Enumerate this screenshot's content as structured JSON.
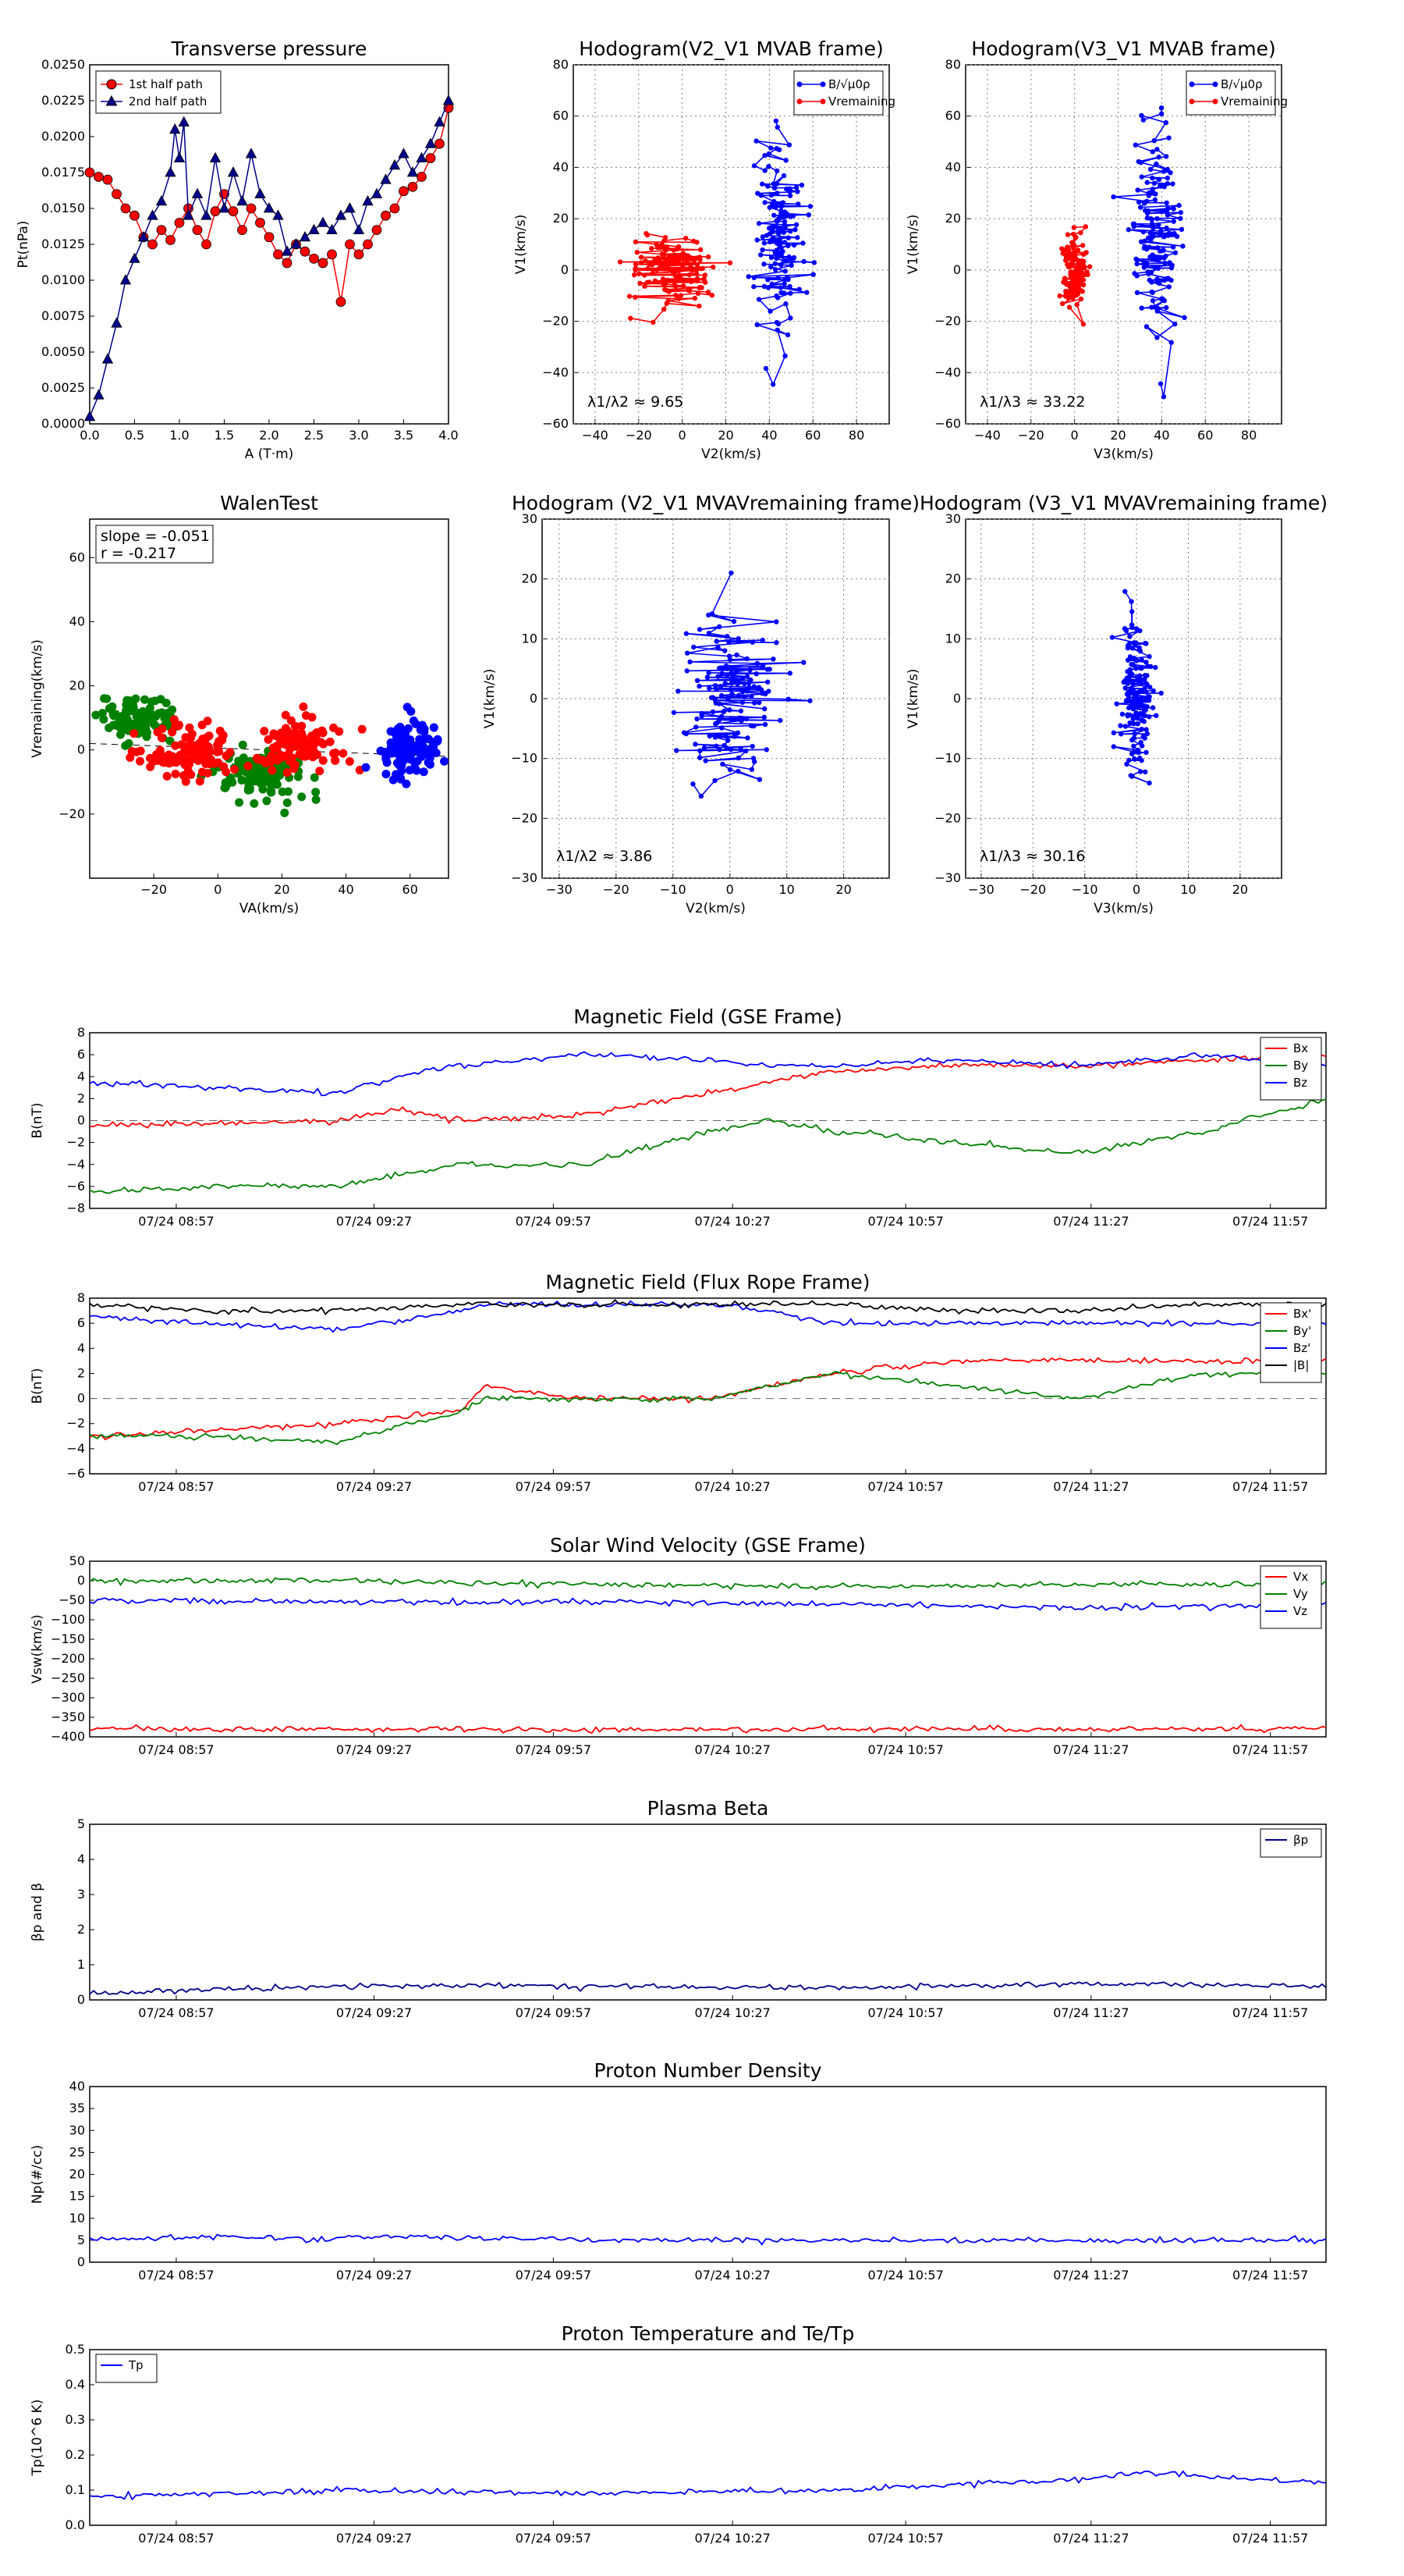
{
  "colors": {
    "red": "#ff0000",
    "green": "#008000",
    "blue": "#0000ff",
    "navy": "#00008b",
    "black": "#000000",
    "grid": "#7f7f7f"
  },
  "chart_data": [
    {
      "id": "tp",
      "type": "scatter",
      "title": "Transverse pressure",
      "xlabel": "A (T·m)",
      "ylabel": "Pt(nPa)",
      "xlim": [
        0,
        4.0
      ],
      "ylim": [
        0,
        0.025
      ],
      "xticks": [
        "0.0",
        "0.5",
        "1.0",
        "1.5",
        "2.0",
        "2.5",
        "3.0",
        "3.5",
        "4.0"
      ],
      "yticks": [
        "0.0000",
        "0.0025",
        "0.0050",
        "0.0075",
        "0.0100",
        "0.0125",
        "0.0150",
        "0.0175",
        "0.0200",
        "0.0225",
        "0.0250"
      ],
      "legend_position": "upper left",
      "series": [
        {
          "name": "1st half path",
          "marker": "circle",
          "color": "red",
          "x": [
            0.0,
            0.1,
            0.2,
            0.3,
            0.4,
            0.5,
            0.6,
            0.7,
            0.8,
            0.9,
            1.0,
            1.1,
            1.2,
            1.3,
            1.4,
            1.5,
            1.6,
            1.7,
            1.8,
            1.9,
            2.0,
            2.1,
            2.2,
            2.3,
            2.4,
            2.5,
            2.6,
            2.7,
            2.8,
            2.9,
            3.0,
            3.1,
            3.2,
            3.3,
            3.4,
            3.5,
            3.6,
            3.7,
            3.8,
            3.9,
            4.0
          ],
          "y": [
            0.0175,
            0.0172,
            0.017,
            0.016,
            0.015,
            0.0145,
            0.013,
            0.0125,
            0.0135,
            0.0128,
            0.014,
            0.015,
            0.0135,
            0.0125,
            0.0148,
            0.016,
            0.0148,
            0.0135,
            0.015,
            0.014,
            0.013,
            0.0118,
            0.0112,
            0.0125,
            0.012,
            0.0115,
            0.0112,
            0.0118,
            0.0085,
            0.0125,
            0.0118,
            0.0125,
            0.0135,
            0.0145,
            0.015,
            0.0162,
            0.0165,
            0.0172,
            0.0185,
            0.0195,
            0.022
          ]
        },
        {
          "name": "2nd half path",
          "marker": "triangle",
          "color": "navy",
          "x": [
            0.0,
            0.1,
            0.2,
            0.3,
            0.4,
            0.5,
            0.6,
            0.7,
            0.8,
            0.9,
            0.95,
            1.0,
            1.05,
            1.1,
            1.2,
            1.3,
            1.4,
            1.5,
            1.6,
            1.7,
            1.8,
            1.9,
            2.0,
            2.1,
            2.2,
            2.3,
            2.4,
            2.5,
            2.6,
            2.7,
            2.8,
            2.9,
            3.0,
            3.1,
            3.2,
            3.3,
            3.4,
            3.5,
            3.6,
            3.7,
            3.8,
            3.9,
            4.0
          ],
          "y": [
            0.0005,
            0.002,
            0.0045,
            0.007,
            0.01,
            0.0115,
            0.013,
            0.0145,
            0.0155,
            0.0175,
            0.0205,
            0.0185,
            0.021,
            0.0145,
            0.016,
            0.0145,
            0.0185,
            0.015,
            0.0175,
            0.0155,
            0.0188,
            0.016,
            0.015,
            0.0145,
            0.012,
            0.0125,
            0.013,
            0.0135,
            0.014,
            0.0135,
            0.0145,
            0.015,
            0.0135,
            0.0155,
            0.016,
            0.017,
            0.018,
            0.0188,
            0.0175,
            0.0185,
            0.0195,
            0.021,
            0.0225
          ]
        }
      ]
    },
    {
      "id": "hodo1",
      "type": "line",
      "title": "Hodogram(V2_V1 MVAB frame)",
      "xlabel": "V2(km/s)",
      "ylabel": "V1(km/s)",
      "xlim": [
        -50,
        95
      ],
      "ylim": [
        -60,
        80
      ],
      "xticks": [
        "−40",
        "−20",
        "0",
        "20",
        "40",
        "60",
        "80"
      ],
      "yticks": [
        "−60",
        "−40",
        "−20",
        "0",
        "20",
        "40",
        "60",
        "80"
      ],
      "legend": [
        "B/√μ0ρ",
        "Vremaining"
      ],
      "annotation": "λ1/λ2 ≈ 9.65",
      "blue_cloud": {
        "center": [
          45,
          15
        ],
        "spread": [
          10,
          35
        ]
      },
      "red_cloud": {
        "center": [
          -5,
          0
        ],
        "spread": [
          18,
          12
        ]
      }
    },
    {
      "id": "hodo2",
      "type": "line",
      "title": "Hodogram(V3_V1 MVAB frame)",
      "xlabel": "V3(km/s)",
      "ylabel": "V1(km/s)",
      "xlim": [
        -50,
        95
      ],
      "ylim": [
        -60,
        80
      ],
      "xticks": [
        "−40",
        "−20",
        "0",
        "20",
        "40",
        "60",
        "80"
      ],
      "yticks": [
        "−60",
        "−40",
        "−20",
        "0",
        "20",
        "40",
        "60",
        "80"
      ],
      "legend": [
        "B/√μ0ρ",
        "Vremaining"
      ],
      "annotation": "λ1/λ3 ≈ 33.22",
      "blue_cloud": {
        "center": [
          37,
          15
        ],
        "spread": [
          10,
          35
        ]
      },
      "red_cloud": {
        "center": [
          0,
          0
        ],
        "spread": [
          5,
          12
        ]
      }
    },
    {
      "id": "walen",
      "type": "scatter",
      "title": "WalenTest",
      "xlabel": "VA(km/s)",
      "ylabel": "Vremaining(km/s)",
      "xlim": [
        -40,
        72
      ],
      "ylim": [
        -40,
        72
      ],
      "xticks": [
        "−20",
        "0",
        "20",
        "40",
        "60"
      ],
      "yticks": [
        "−20",
        "0",
        "20",
        "40",
        "60"
      ],
      "annotation": [
        "slope = -0.051",
        "r = -0.217"
      ],
      "clouds": [
        {
          "color": "green",
          "center": [
            -25,
            10
          ],
          "spread": [
            12,
            6
          ]
        },
        {
          "color": "green",
          "center": [
            15,
            -8
          ],
          "spread": [
            15,
            8
          ]
        },
        {
          "color": "red",
          "center": [
            -10,
            0
          ],
          "spread": [
            15,
            8
          ]
        },
        {
          "color": "red",
          "center": [
            25,
            2
          ],
          "spread": [
            15,
            8
          ]
        },
        {
          "color": "blue",
          "center": [
            60,
            0
          ],
          "spread": [
            10,
            8
          ]
        }
      ]
    },
    {
      "id": "hodo3",
      "type": "line",
      "title": "Hodogram (V2_V1 MVAVremaining frame)",
      "xlabel": "V2(km/s)",
      "ylabel": "V1(km/s)",
      "xlim": [
        -33,
        28
      ],
      "ylim": [
        -30,
        30
      ],
      "xticks": [
        "−30",
        "−20",
        "−10",
        "0",
        "10",
        "20"
      ],
      "yticks": [
        "−30",
        "−20",
        "−10",
        "0",
        "10",
        "20",
        "30"
      ],
      "annotation": "λ1/λ2 ≈ 3.86",
      "blue_cloud": {
        "center": [
          0,
          0
        ],
        "spread": [
          8,
          13
        ]
      }
    },
    {
      "id": "hodo4",
      "type": "line",
      "title": "Hodogram (V3_V1 MVAVremaining frame)",
      "xlabel": "V3(km/s)",
      "ylabel": "V1(km/s)",
      "xlim": [
        -33,
        28
      ],
      "ylim": [
        -30,
        30
      ],
      "xticks": [
        "−30",
        "−20",
        "−10",
        "0",
        "10",
        "20"
      ],
      "yticks": [
        "−30",
        "−20",
        "−10",
        "0",
        "10",
        "20",
        "30"
      ],
      "annotation": "λ1/λ3 ≈ 30.16",
      "blue_cloud": {
        "center": [
          0,
          0
        ],
        "spread": [
          3,
          13
        ]
      }
    },
    {
      "id": "bgse",
      "type": "line",
      "title": "Magnetic Field (GSE Frame)",
      "ylabel": "B(nT)",
      "ylim": [
        -8,
        8
      ],
      "yticks": [
        "−8",
        "−6",
        "−4",
        "−2",
        "0",
        "2",
        "4",
        "6",
        "8"
      ],
      "xticks": [
        "07/24 08:57",
        "07/24 09:27",
        "07/24 09:57",
        "07/24 10:27",
        "07/24 10:57",
        "07/24 11:27",
        "07/24 11:57"
      ],
      "zero_line": true,
      "series": [
        {
          "name": "Bx",
          "color": "red",
          "t": [
            0,
            0.1,
            0.2,
            0.25,
            0.3,
            0.4,
            0.5,
            0.55,
            0.6,
            0.7,
            0.8,
            0.9,
            1.0
          ],
          "y": [
            -0.5,
            -0.3,
            0,
            1,
            0,
            0.5,
            2.5,
            3.5,
            4.5,
            5,
            5,
            5.5,
            6
          ]
        },
        {
          "name": "By",
          "color": "green",
          "t": [
            0,
            0.1,
            0.2,
            0.25,
            0.3,
            0.4,
            0.5,
            0.55,
            0.6,
            0.7,
            0.8,
            0.9,
            1.0
          ],
          "y": [
            -6.5,
            -6,
            -6,
            -5,
            -4,
            -4,
            -1,
            0,
            -1,
            -2,
            -3,
            -1,
            2
          ]
        },
        {
          "name": "Bz",
          "color": "blue",
          "t": [
            0,
            0.1,
            0.2,
            0.25,
            0.3,
            0.4,
            0.5,
            0.55,
            0.6,
            0.7,
            0.8,
            0.9,
            1.0
          ],
          "y": [
            3.5,
            3,
            2.5,
            4,
            5,
            6,
            5.5,
            5,
            5,
            5.5,
            5,
            6,
            5
          ]
        }
      ]
    },
    {
      "id": "bfr",
      "type": "line",
      "title": "Magnetic Field (Flux Rope Frame)",
      "ylabel": "B(nT)",
      "ylim": [
        -6,
        8
      ],
      "yticks": [
        "−6",
        "−4",
        "−2",
        "0",
        "2",
        "4",
        "6",
        "8"
      ],
      "xticks": [
        "07/24 08:57",
        "07/24 09:27",
        "07/24 09:57",
        "07/24 10:27",
        "07/24 10:57",
        "07/24 11:27",
        "07/24 11:57"
      ],
      "zero_line": true,
      "series": [
        {
          "name": "Bx'",
          "color": "red",
          "t": [
            0,
            0.1,
            0.2,
            0.3,
            0.32,
            0.4,
            0.5,
            0.55,
            0.6,
            0.7,
            0.8,
            0.9,
            1.0
          ],
          "y": [
            -3,
            -2.5,
            -2,
            -1,
            1,
            0,
            0,
            1,
            2,
            3,
            3,
            3,
            3
          ]
        },
        {
          "name": "By'",
          "color": "green",
          "t": [
            0,
            0.1,
            0.2,
            0.3,
            0.32,
            0.4,
            0.5,
            0.55,
            0.6,
            0.7,
            0.8,
            0.9,
            1.0
          ],
          "y": [
            -3,
            -3,
            -3.5,
            -1,
            0,
            0,
            0,
            1,
            2,
            1,
            0,
            2,
            2
          ]
        },
        {
          "name": "Bz'",
          "color": "blue",
          "t": [
            0,
            0.1,
            0.2,
            0.3,
            0.32,
            0.4,
            0.5,
            0.55,
            0.6,
            0.7,
            0.8,
            0.9,
            1.0
          ],
          "y": [
            6.5,
            6,
            5.5,
            7,
            7.5,
            7.5,
            7.5,
            7,
            6,
            6,
            6,
            6,
            6
          ]
        },
        {
          "name": "|B|",
          "color": "black",
          "t": [
            0,
            0.1,
            0.2,
            0.3,
            0.32,
            0.4,
            0.5,
            0.55,
            0.6,
            0.7,
            0.8,
            0.9,
            1.0
          ],
          "y": [
            7.5,
            7,
            7,
            7.5,
            7.5,
            7.5,
            7.5,
            7.5,
            7.5,
            7,
            7,
            7.5,
            7.5
          ]
        }
      ]
    },
    {
      "id": "vsw",
      "type": "line",
      "title": "Solar Wind Velocity (GSE Frame)",
      "ylabel": "Vsw(km/s)",
      "ylim": [
        -400,
        50
      ],
      "yticks": [
        "−400",
        "−350",
        "−300",
        "−250",
        "−200",
        "−150",
        "−100",
        "−50",
        "0",
        "50"
      ],
      "xticks": [
        "07/24 08:57",
        "07/24 09:27",
        "07/24 09:57",
        "07/24 10:27",
        "07/24 10:57",
        "07/24 11:27",
        "07/24 11:57"
      ],
      "series": [
        {
          "name": "Vx",
          "color": "red",
          "t": [
            0,
            0.2,
            0.4,
            0.6,
            0.8,
            1.0
          ],
          "y": [
            -380,
            -380,
            -382,
            -380,
            -380,
            -378
          ]
        },
        {
          "name": "Vy",
          "color": "green",
          "t": [
            0,
            0.2,
            0.4,
            0.6,
            0.8,
            1.0
          ],
          "y": [
            0,
            0,
            -10,
            -15,
            -10,
            -5
          ]
        },
        {
          "name": "Vz",
          "color": "blue",
          "t": [
            0,
            0.2,
            0.4,
            0.6,
            0.8,
            1.0
          ],
          "y": [
            -50,
            -55,
            -55,
            -60,
            -70,
            -60
          ]
        }
      ]
    },
    {
      "id": "beta",
      "type": "line",
      "title": "Plasma Beta",
      "ylabel": "βp and β",
      "ylim": [
        0,
        5
      ],
      "yticks": [
        "0",
        "1",
        "2",
        "3",
        "4",
        "5"
      ],
      "xticks": [
        "07/24 08:57",
        "07/24 09:27",
        "07/24 09:57",
        "07/24 10:27",
        "07/24 10:57",
        "07/24 11:27",
        "07/24 11:57"
      ],
      "series": [
        {
          "name": "βp",
          "color": "navy",
          "t": [
            0,
            0.2,
            0.4,
            0.6,
            0.8,
            1.0
          ],
          "y": [
            0.2,
            0.4,
            0.4,
            0.35,
            0.45,
            0.4
          ]
        }
      ]
    },
    {
      "id": "np",
      "type": "line",
      "title": "Proton Number Density",
      "ylabel": "Np(#/cc)",
      "ylim": [
        0,
        40
      ],
      "yticks": [
        "0",
        "5",
        "10",
        "15",
        "20",
        "25",
        "30",
        "35",
        "40"
      ],
      "xticks": [
        "07/24 08:57",
        "07/24 09:27",
        "07/24 09:57",
        "07/24 10:27",
        "07/24 10:57",
        "07/24 11:27",
        "07/24 11:57"
      ],
      "series": [
        {
          "name": "",
          "color": "blue",
          "t": [
            0,
            0.1,
            0.2,
            0.22,
            0.4,
            0.6,
            0.8,
            1.0
          ],
          "y": [
            5,
            6,
            5,
            6,
            5,
            5,
            5,
            5
          ]
        }
      ]
    },
    {
      "id": "tp_temp",
      "type": "line",
      "title": "Proton Temperature and Te/Tp",
      "ylabel": "Tp(10^6 K)",
      "ylim": [
        0,
        0.5
      ],
      "yticks": [
        "0.0",
        "0.1",
        "0.2",
        "0.3",
        "0.4",
        "0.5"
      ],
      "xticks": [
        "07/24 08:57",
        "07/24 09:27",
        "07/24 09:57",
        "07/24 10:27",
        "07/24 10:57",
        "07/24 11:27",
        "07/24 11:57"
      ],
      "series": [
        {
          "name": "Tp",
          "color": "blue",
          "t": [
            0,
            0.2,
            0.4,
            0.6,
            0.8,
            0.85,
            1.0
          ],
          "y": [
            0.08,
            0.1,
            0.09,
            0.1,
            0.13,
            0.15,
            0.12
          ]
        }
      ]
    }
  ]
}
